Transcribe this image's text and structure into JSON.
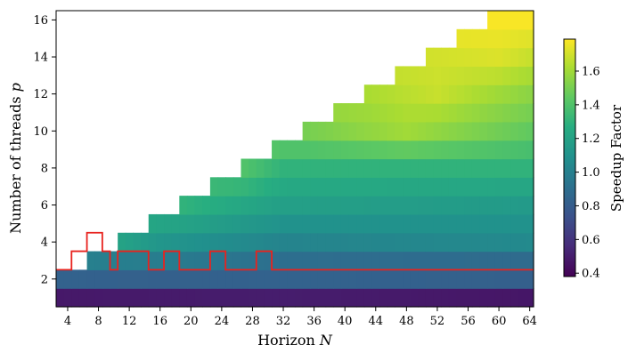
{
  "chart_data": {
    "type": "heatmap",
    "title": "",
    "xlabel": "Horizon N",
    "xlabel_text": "Horizon ",
    "xlabel_var": "N",
    "ylabel": "Number of threads p",
    "ylabel_text": "Number of threads ",
    "ylabel_var": "p",
    "x_range": [
      3,
      64
    ],
    "y_range": [
      1,
      16
    ],
    "x_ticks": [
      4,
      8,
      12,
      16,
      20,
      24,
      28,
      32,
      36,
      40,
      44,
      48,
      52,
      56,
      60,
      64
    ],
    "y_ticks": [
      2,
      4,
      6,
      8,
      10,
      12,
      14,
      16
    ],
    "cell_rule": "A cell exists only where N >= 4p - 5 (plus N = 3 for p = 1, 2); white elsewhere",
    "colormap": "viridis",
    "colorbar": {
      "label": "Speedup Factor",
      "min": 0.38,
      "max": 1.79,
      "ticks": [
        0.4,
        0.6,
        0.8,
        1.0,
        1.2,
        1.4,
        1.6
      ]
    },
    "speedup_by_threads": [
      {
        "p": 1,
        "values": {
          "3": 0.48,
          "16": 0.49,
          "32": 0.5,
          "64": 0.47
        }
      },
      {
        "p": 2,
        "values": {
          "3": 0.83,
          "16": 0.82,
          "32": 0.83,
          "64": 0.82
        }
      },
      {
        "p": 3,
        "values": {
          "4": 1.0,
          "16": 0.98,
          "32": 0.9,
          "64": 0.88
        }
      },
      {
        "p": 4,
        "values": {
          "11": 1.2,
          "16": 1.12,
          "32": 1.02,
          "64": 1.05
        }
      },
      {
        "p": 6,
        "values": {
          "19": 1.3,
          "32": 1.18,
          "64": 1.15
        }
      },
      {
        "p": 8,
        "values": {
          "27": 1.4,
          "32": 1.3,
          "64": 1.3
        }
      },
      {
        "p": 10,
        "values": {
          "35": 1.5,
          "48": 1.6,
          "64": 1.45
        }
      },
      {
        "p": 12,
        "values": {
          "43": 1.62,
          "52": 1.68,
          "64": 1.55
        }
      },
      {
        "p": 14,
        "values": {
          "51": 1.7,
          "60": 1.72,
          "64": 1.68
        }
      },
      {
        "p": 16,
        "values": {
          "59": 1.78,
          "64": 1.78
        }
      }
    ],
    "threshold_contour": {
      "level": 1.0,
      "color": "#e8231f",
      "description": "Boundary between speedup < 1 and speedup >= 1",
      "upper_p_by_N": [
        {
          "N": [
            3,
            4
          ],
          "p": 2
        },
        {
          "N": [
            5,
            6
          ],
          "p": 3
        },
        {
          "N": [
            7,
            8
          ],
          "p": 4
        },
        {
          "N": [
            9,
            9
          ],
          "p": 3
        },
        {
          "N": [
            10,
            10
          ],
          "p": 2
        },
        {
          "N": [
            11,
            14
          ],
          "p": 3
        },
        {
          "N": [
            15,
            16
          ],
          "p": 2
        },
        {
          "N": [
            17,
            18
          ],
          "p": 3
        },
        {
          "N": [
            19,
            22
          ],
          "p": 2
        },
        {
          "N": [
            23,
            24
          ],
          "p": 3
        },
        {
          "N": [
            25,
            28
          ],
          "p": 2
        },
        {
          "N": [
            29,
            30
          ],
          "p": 3
        },
        {
          "N": [
            31,
            64
          ],
          "p": 2
        }
      ]
    }
  }
}
